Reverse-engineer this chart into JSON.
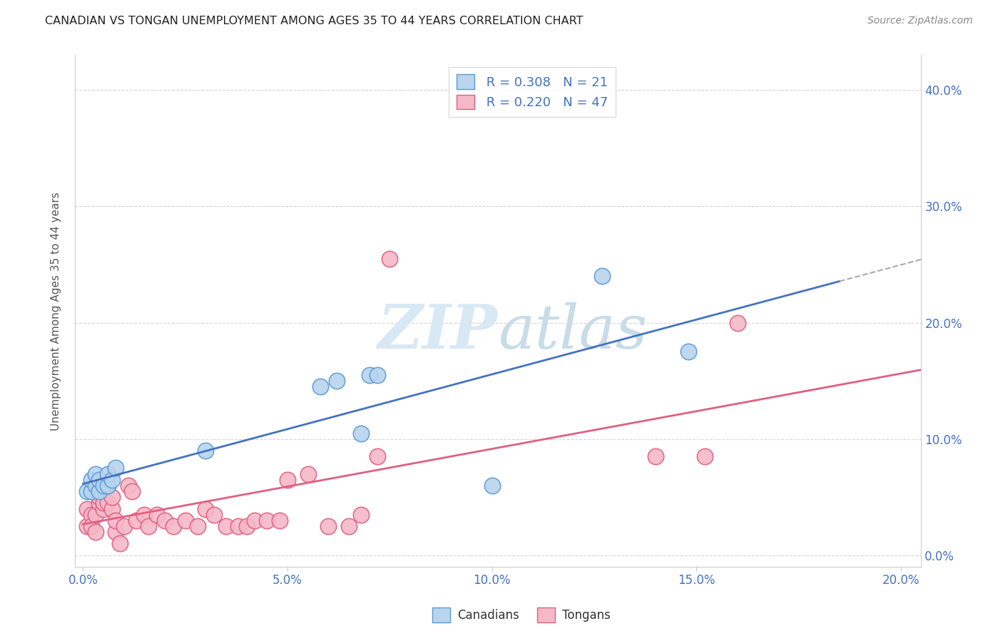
{
  "title": "CANADIAN VS TONGAN UNEMPLOYMENT AMONG AGES 35 TO 44 YEARS CORRELATION CHART",
  "source": "Source: ZipAtlas.com",
  "xlabel_ticks": [
    "0.0%",
    "5.0%",
    "10.0%",
    "15.0%",
    "20.0%"
  ],
  "xlabel_tick_vals": [
    0.0,
    0.05,
    0.1,
    0.15,
    0.2
  ],
  "ylabel": "Unemployment Among Ages 35 to 44 years",
  "ylabel_ticks_left": [],
  "ylabel_ticks_right": [
    "0.0%",
    "10.0%",
    "20.0%",
    "30.0%",
    "40.0%"
  ],
  "ylabel_tick_vals": [
    0.0,
    0.1,
    0.2,
    0.3,
    0.4
  ],
  "xlim": [
    -0.002,
    0.205
  ],
  "ylim": [
    -0.01,
    0.43
  ],
  "canadian_R": 0.308,
  "canadian_N": 21,
  "tongan_R": 0.22,
  "tongan_N": 47,
  "canadian_color": "#b8d4ee",
  "canadian_edge_color": "#5b9bd5",
  "tongan_color": "#f4b8c8",
  "tongan_edge_color": "#e06080",
  "trendline_canadian_color": "#4472c4",
  "trendline_tongan_color": "#e06080",
  "trendline_dash_color": "#aaaaaa",
  "watermark_color": "#d8e8f4",
  "background_color": "#ffffff",
  "grid_color": "#cccccc",
  "canadian_x": [
    0.001,
    0.002,
    0.002,
    0.003,
    0.003,
    0.004,
    0.004,
    0.005,
    0.006,
    0.006,
    0.007,
    0.008,
    0.03,
    0.058,
    0.062,
    0.068,
    0.07,
    0.072,
    0.1,
    0.127,
    0.148
  ],
  "canadian_y": [
    0.055,
    0.055,
    0.065,
    0.06,
    0.07,
    0.055,
    0.065,
    0.06,
    0.06,
    0.07,
    0.065,
    0.075,
    0.09,
    0.145,
    0.15,
    0.105,
    0.155,
    0.155,
    0.06,
    0.24,
    0.175
  ],
  "tongan_x": [
    0.001,
    0.001,
    0.002,
    0.002,
    0.003,
    0.003,
    0.004,
    0.004,
    0.004,
    0.005,
    0.005,
    0.006,
    0.006,
    0.007,
    0.007,
    0.008,
    0.008,
    0.009,
    0.01,
    0.011,
    0.012,
    0.013,
    0.015,
    0.016,
    0.018,
    0.02,
    0.022,
    0.025,
    0.028,
    0.03,
    0.032,
    0.035,
    0.038,
    0.04,
    0.042,
    0.045,
    0.048,
    0.05,
    0.055,
    0.06,
    0.065,
    0.068,
    0.072,
    0.075,
    0.14,
    0.152,
    0.16
  ],
  "tongan_y": [
    0.04,
    0.025,
    0.035,
    0.025,
    0.035,
    0.02,
    0.045,
    0.05,
    0.055,
    0.04,
    0.045,
    0.045,
    0.06,
    0.04,
    0.05,
    0.02,
    0.03,
    0.01,
    0.025,
    0.06,
    0.055,
    0.03,
    0.035,
    0.025,
    0.035,
    0.03,
    0.025,
    0.03,
    0.025,
    0.04,
    0.035,
    0.025,
    0.025,
    0.025,
    0.03,
    0.03,
    0.03,
    0.065,
    0.07,
    0.025,
    0.025,
    0.035,
    0.085,
    0.255,
    0.085,
    0.085,
    0.2
  ]
}
